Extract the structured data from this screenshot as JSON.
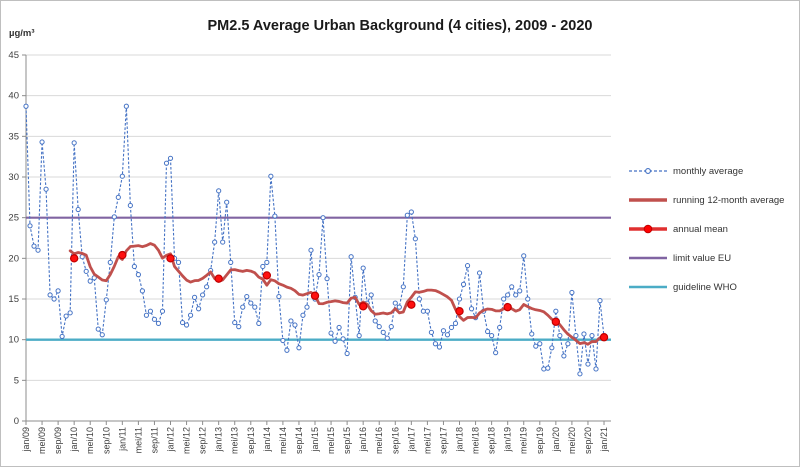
{
  "title": "PM2.5 Average Urban Background (4 cities), 2009 - 2020",
  "y_axis": {
    "unit": "µg/m³",
    "min": 0,
    "max": 45,
    "ticks": [
      0,
      5,
      10,
      15,
      20,
      25,
      30,
      35,
      40,
      45
    ]
  },
  "x_axis": {
    "tick_labels": [
      "jan/09",
      "mei/09",
      "sep/09",
      "jan/10",
      "mei/10",
      "sep/10",
      "jan/11",
      "mei/11",
      "sep/11",
      "jan/12",
      "mei/12",
      "sep/12",
      "jan/13",
      "mei/13",
      "sep/13",
      "jan/14",
      "mei/14",
      "sep/14",
      "jan/15",
      "mei/15",
      "sep/15",
      "jan/16",
      "mei/16",
      "sep/16",
      "jan/17",
      "mei/17",
      "sep/17",
      "jan/18",
      "mei/18",
      "sep/18",
      "jan/19",
      "mei/19",
      "sep/19",
      "jan/20",
      "mei/20",
      "sep/20",
      "jan/21"
    ]
  },
  "legend": [
    {
      "label": "monthly average",
      "color": "#4472C4",
      "style": "dashed-circle"
    },
    {
      "label": "running 12-month average",
      "color": "#C0504D",
      "style": "thick"
    },
    {
      "label": "annual mean",
      "color": "#FF0000",
      "style": "thick-dot",
      "line_color": "#E03030"
    },
    {
      "label": "limit value EU",
      "color": "#8064A2",
      "style": "line"
    },
    {
      "label": "guideline WHO",
      "color": "#4BACC6",
      "style": "line"
    }
  ],
  "colors": {
    "gridline": "#D9D9D9",
    "axis": "#8C8C8C",
    "tick_text": "#404040",
    "monthly": "#4472C4",
    "running": "#C0504D",
    "annual_fill": "#FF1010",
    "annual_stroke": "#C00000",
    "limit_eu": "#8064A2",
    "guideline_who": "#4BACC6"
  },
  "chart_data": {
    "type": "line",
    "title": "PM2.5 Average Urban Background (4 cities), 2009 - 2020",
    "xlabel": "",
    "ylabel": "µg/m³",
    "ylim": [
      0,
      45
    ],
    "grid": "horizontal",
    "legend_position": "right",
    "x_interval": "monthly",
    "x_start": "jan/09",
    "x_end": "jan/21",
    "series": [
      {
        "name": "monthly average",
        "values": [
          38.7,
          24.0,
          21.5,
          21.0,
          34.3,
          28.5,
          15.5,
          15.0,
          16.0,
          10.4,
          12.9,
          13.3,
          34.2,
          26.0,
          20.2,
          18.4,
          17.2,
          17.6,
          11.3,
          10.6,
          14.9,
          19.5,
          25.1,
          27.5,
          30.1,
          38.7,
          26.5,
          19.0,
          18.0,
          16.0,
          13.0,
          13.5,
          12.5,
          12.0,
          13.5,
          31.7,
          32.3,
          20.0,
          19.5,
          12.1,
          11.8,
          13.0,
          15.2,
          13.8,
          15.5,
          16.5,
          18.5,
          22.0,
          28.3,
          22.0,
          26.9,
          19.5,
          12.1,
          11.6,
          14.0,
          15.3,
          14.5,
          14.0,
          12.0,
          19.0,
          19.5,
          30.1,
          25.2,
          15.3,
          9.9,
          8.7,
          12.3,
          11.8,
          9.0,
          13.0,
          14.0,
          21.0,
          15.0,
          18.0,
          25.0,
          17.5,
          10.8,
          9.8,
          11.5,
          10.1,
          8.3,
          20.2,
          15.2,
          10.5,
          18.8,
          14.5,
          15.5,
          12.3,
          11.6,
          10.9,
          10.2,
          11.6,
          14.5,
          14.0,
          16.5,
          25.3,
          25.7,
          22.4,
          15.0,
          13.5,
          13.5,
          10.9,
          9.5,
          9.1,
          11.1,
          10.6,
          11.5,
          12.0,
          15.0,
          16.8,
          19.1,
          13.8,
          12.7,
          18.2,
          13.5,
          11.0,
          10.5,
          8.4,
          11.5,
          15.0,
          15.5,
          16.5,
          15.5,
          16.0,
          20.3,
          15.0,
          10.7,
          9.2,
          9.5,
          6.4,
          6.5,
          9.0,
          13.5,
          10.5,
          8.0,
          9.5,
          15.8,
          10.5,
          5.8,
          10.7,
          7.0,
          10.5,
          6.4,
          14.8,
          10.4
        ]
      },
      {
        "name": "running 12-month average",
        "derived_from": "monthly average",
        "window": 12,
        "note": "rolling mean of previous 12 months, plotted from dec/09 to jan/21"
      },
      {
        "name": "annual mean",
        "x": [
          "jan/10",
          "jan/11",
          "jan/12",
          "jan/13",
          "jan/14",
          "jan/15",
          "jan/16",
          "jan/17",
          "jan/18",
          "jan/19",
          "jan/20",
          "jan/21"
        ],
        "values": [
          20.0,
          20.4,
          20.0,
          17.5,
          17.9,
          15.4,
          14.1,
          14.3,
          13.5,
          14.0,
          12.2,
          10.3
        ]
      },
      {
        "name": "limit value EU",
        "type": "constant",
        "value": 25
      },
      {
        "name": "guideline WHO",
        "type": "constant",
        "value": 10
      }
    ]
  }
}
